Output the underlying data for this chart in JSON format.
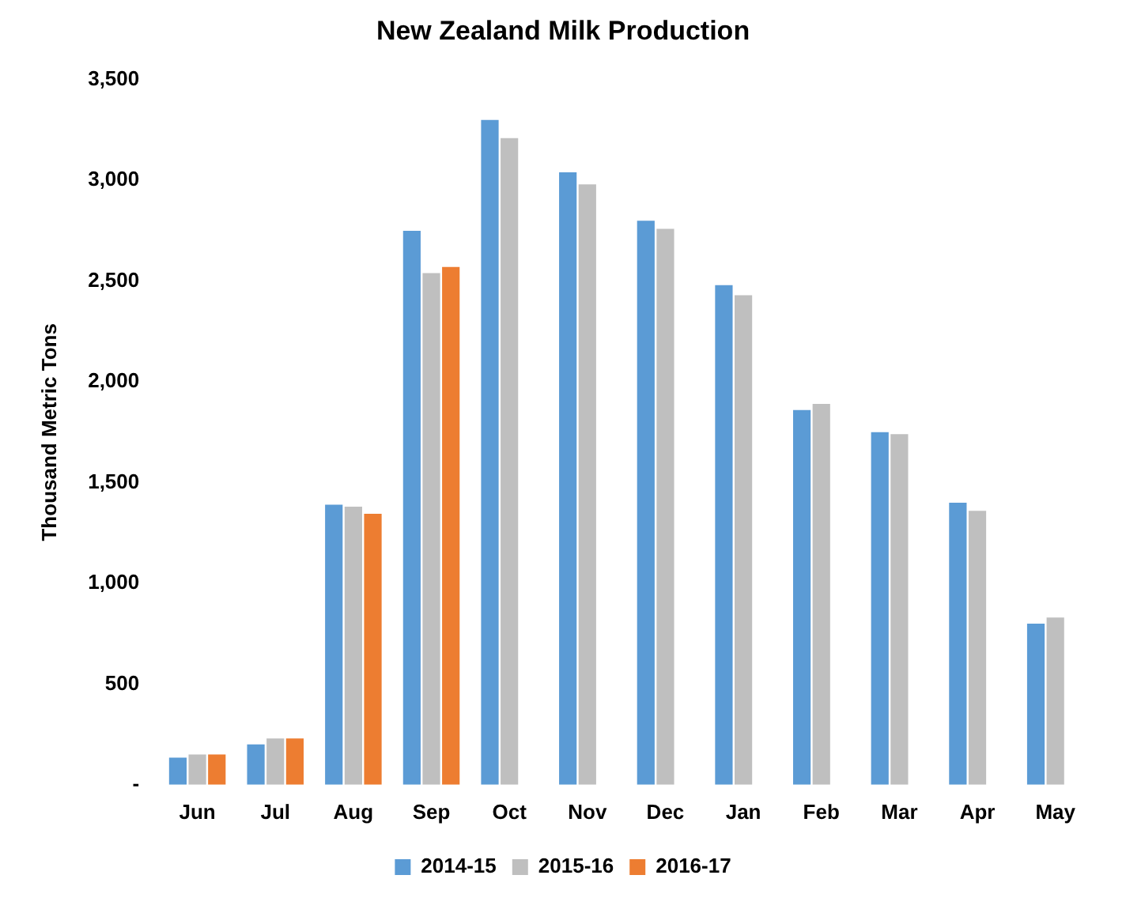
{
  "chart_data": {
    "type": "bar",
    "title": "New Zealand Milk Production",
    "ylabel": "Thousand Metric Tons",
    "categories": [
      "Jun",
      "Jul",
      "Aug",
      "Sep",
      "Oct",
      "Nov",
      "Dec",
      "Jan",
      "Feb",
      "Mar",
      "Apr",
      "May"
    ],
    "series": [
      {
        "name": "2014-15",
        "color": "#5b9bd5",
        "values": [
          135,
          200,
          1390,
          2750,
          3300,
          3040,
          2800,
          2480,
          1860,
          1750,
          1400,
          800
        ]
      },
      {
        "name": "2015-16",
        "color": "#bfbfbf",
        "values": [
          150,
          230,
          1380,
          2540,
          3210,
          2980,
          2760,
          2430,
          1890,
          1740,
          1360,
          830
        ]
      },
      {
        "name": "2016-17",
        "color": "#ed7d31",
        "values": [
          150,
          230,
          1345,
          2570,
          null,
          null,
          null,
          null,
          null,
          null,
          null,
          null
        ]
      }
    ],
    "ylim": [
      0,
      3500
    ],
    "yticks": [
      {
        "value": 0,
        "label": "-"
      },
      500,
      {
        "value": 1000,
        "label": "1,000"
      },
      {
        "value": 1500,
        "label": "1,500"
      },
      {
        "value": 2000,
        "label": "2,000"
      },
      {
        "value": 2500,
        "label": "2,500"
      },
      {
        "value": 3000,
        "label": "3,000"
      },
      {
        "value": 3500,
        "label": "3,500"
      }
    ],
    "grid": false,
    "legend": "bottom"
  }
}
